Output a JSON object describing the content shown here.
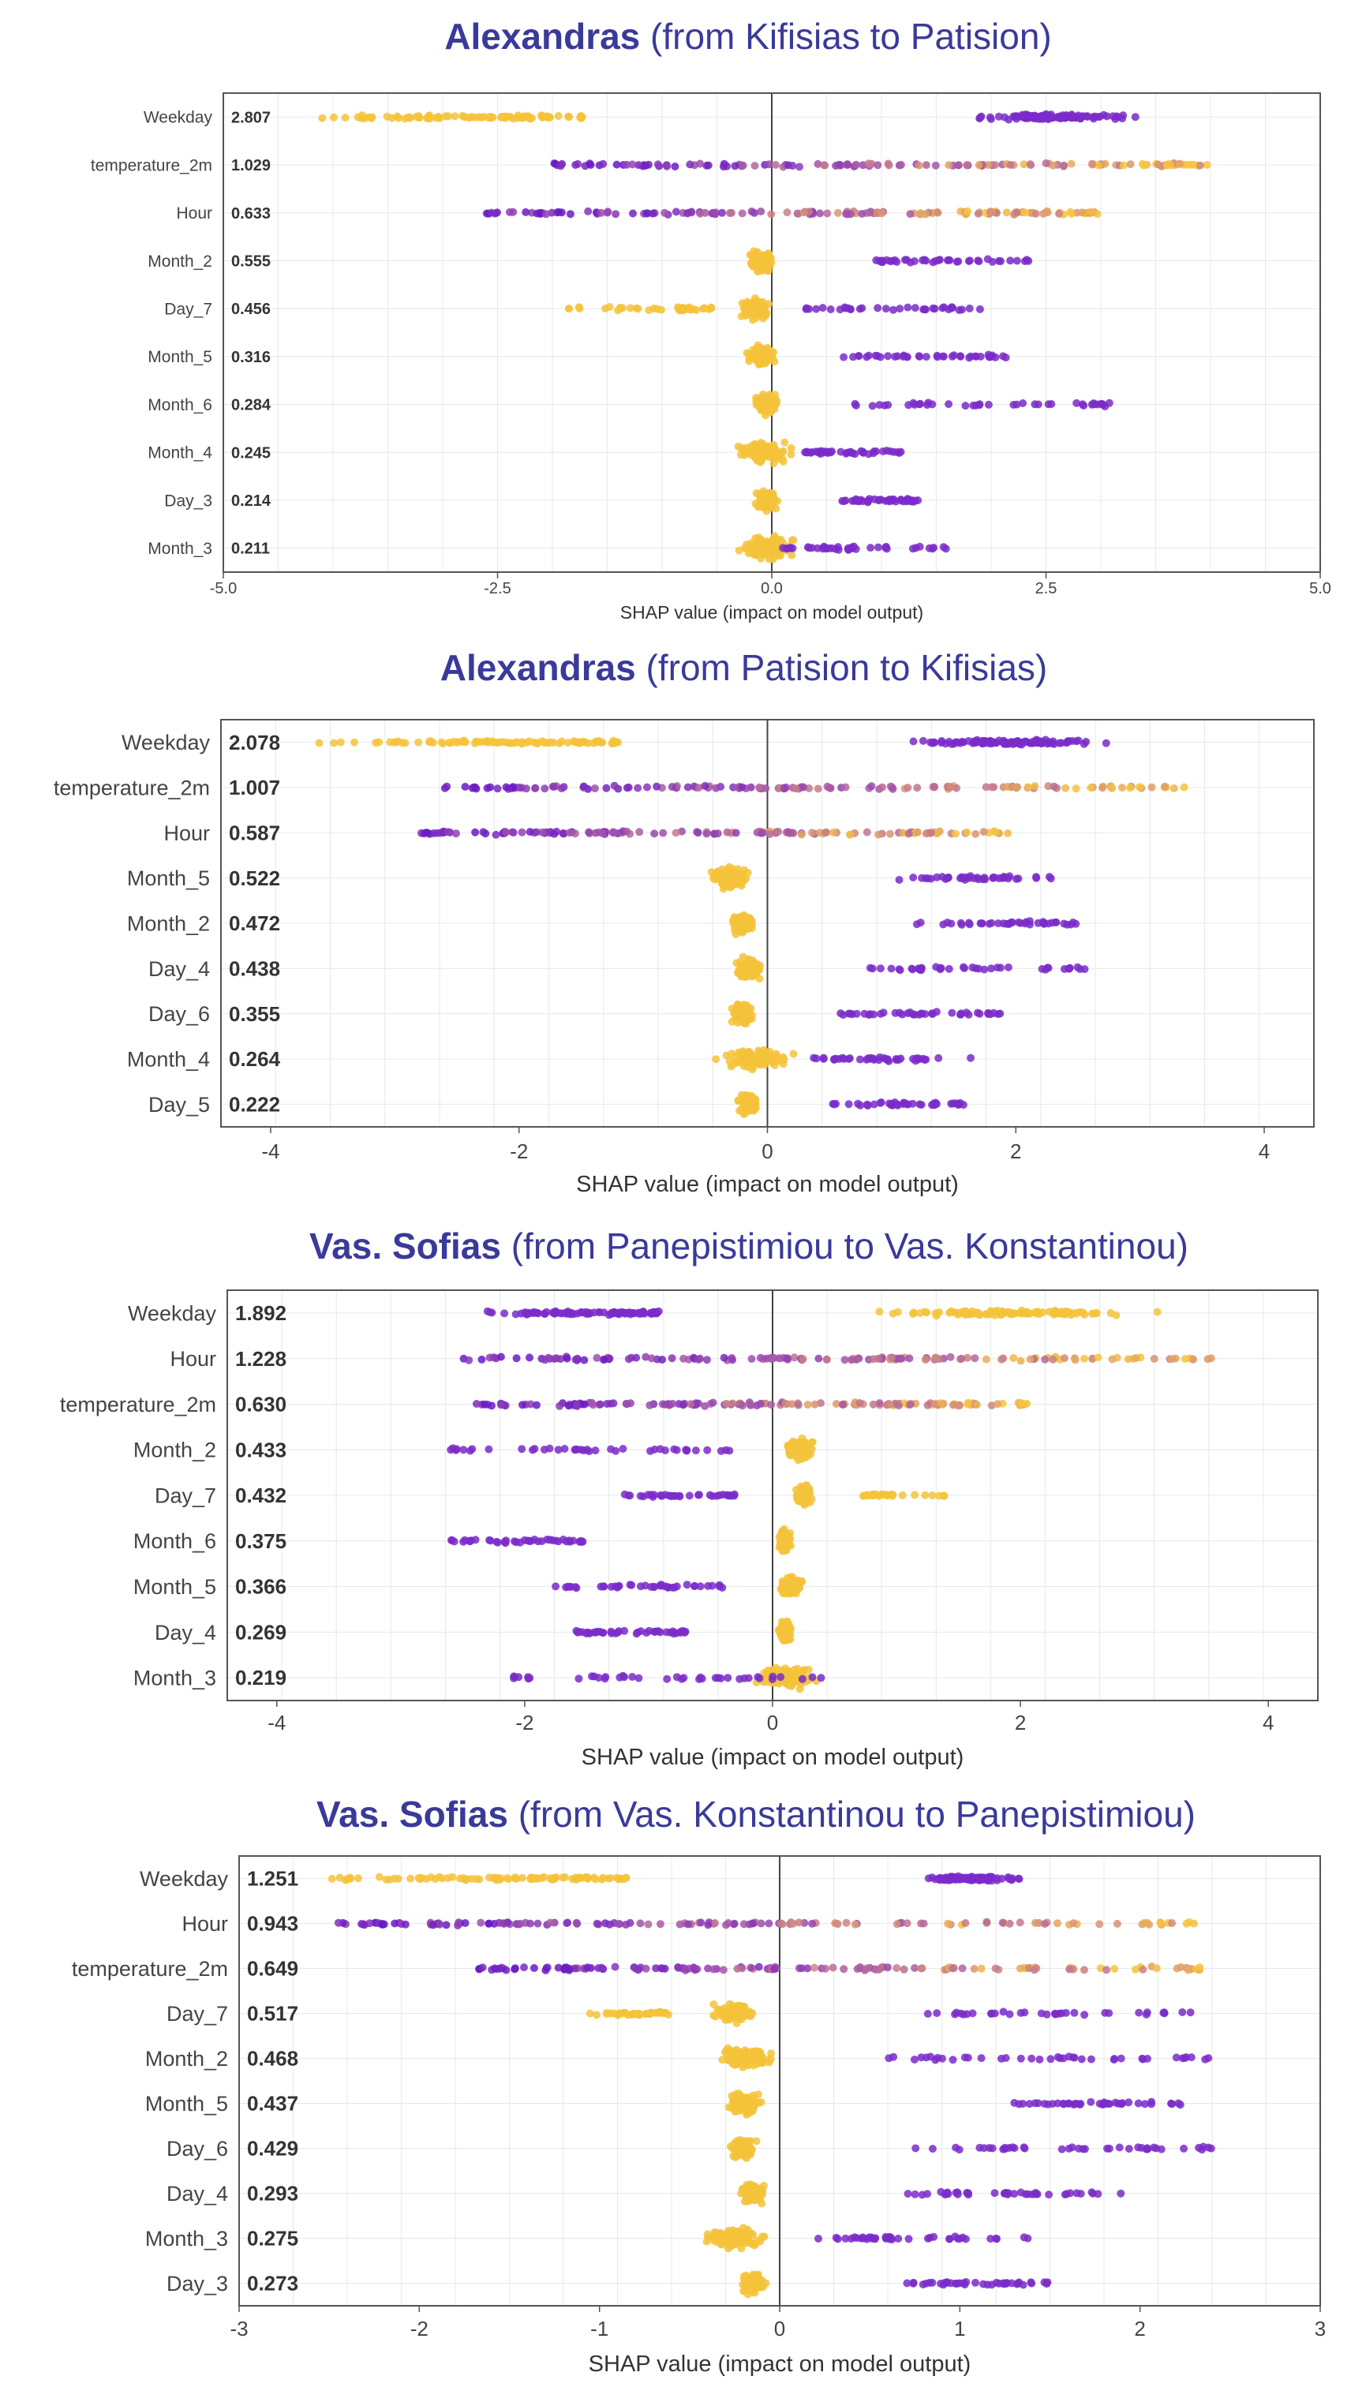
{
  "chart_data": [
    {
      "type": "scatter",
      "title_route": "Alexandras",
      "title_rest": "(from Kifisias to Patision)",
      "xlabel": "SHAP value (impact on model output)",
      "xlim": [
        -5,
        5
      ],
      "xticks": [
        -5.0,
        -2.5,
        0.0,
        2.5,
        5.0
      ],
      "xtick_labels": [
        "-5.0",
        "-2.5",
        "0.0",
        "2.5",
        "5.0"
      ],
      "grid": true,
      "features": [
        {
          "name": "Weekday",
          "importance": "2.807",
          "kind": "bimodal",
          "neg": [
            -4.4,
            -1.7
          ],
          "pos": [
            1.6,
            3.5
          ],
          "neg_color": "#f5c33b",
          "pos_color": "#7a2bc9"
        },
        {
          "name": "temperature_2m",
          "importance": "1.029",
          "kind": "gradient",
          "range": [
            -2.0,
            4.0
          ]
        },
        {
          "name": "Hour",
          "importance": "0.633",
          "kind": "gradient",
          "range": [
            -2.6,
            3.0
          ]
        },
        {
          "name": "Month_2",
          "importance": "0.555",
          "kind": "cluster_plus",
          "center": -0.1,
          "spread": 0.15,
          "tail": [
            0.9,
            2.4
          ]
        },
        {
          "name": "Day_7",
          "importance": "0.456",
          "kind": "cluster_neg_tail_pos",
          "center": -0.15,
          "neg": [
            -2.0,
            -0.5
          ],
          "tail": [
            0.3,
            1.9
          ]
        },
        {
          "name": "Month_5",
          "importance": "0.316",
          "kind": "cluster_plus",
          "center": -0.1,
          "spread": 0.15,
          "tail": [
            0.6,
            2.2
          ]
        },
        {
          "name": "Month_6",
          "importance": "0.284",
          "kind": "cluster_plus",
          "center": -0.05,
          "spread": 0.12,
          "tail": [
            0.7,
            3.1
          ]
        },
        {
          "name": "Month_4",
          "importance": "0.245",
          "kind": "cluster_plus",
          "center": -0.05,
          "spread": 0.3,
          "tail": [
            0.3,
            1.2
          ]
        },
        {
          "name": "Day_3",
          "importance": "0.214",
          "kind": "cluster_plus",
          "center": -0.05,
          "spread": 0.12,
          "tail": [
            0.6,
            1.4
          ]
        },
        {
          "name": "Month_3",
          "importance": "0.211",
          "kind": "cluster_plus",
          "center": -0.05,
          "spread": 0.3,
          "tail": [
            0.1,
            1.6
          ]
        }
      ]
    },
    {
      "type": "scatter",
      "title_route": "Alexandras",
      "title_rest": "(from Patision to Kifisias)",
      "xlabel": "SHAP value (impact on model output)",
      "xlim": [
        -4.4,
        4.4
      ],
      "xticks": [
        -4,
        -2,
        0,
        2,
        4
      ],
      "xtick_labels": [
        "-4",
        "-2",
        "0",
        "2",
        "4"
      ],
      "grid": true,
      "features": [
        {
          "name": "Weekday",
          "importance": "2.078",
          "kind": "bimodal",
          "neg": [
            -3.7,
            -1.2
          ],
          "pos": [
            0.9,
            3.0
          ],
          "neg_color": "#f5c33b",
          "pos_color": "#7a2bc9"
        },
        {
          "name": "temperature_2m",
          "importance": "1.007",
          "kind": "gradient",
          "range": [
            -2.6,
            3.4
          ]
        },
        {
          "name": "Hour",
          "importance": "0.587",
          "kind": "gradient",
          "range": [
            -2.8,
            2.0
          ]
        },
        {
          "name": "Month_5",
          "importance": "0.522",
          "kind": "cluster_plus",
          "center": -0.3,
          "spread": 0.2,
          "tail": [
            1.0,
            2.3
          ]
        },
        {
          "name": "Month_2",
          "importance": "0.472",
          "kind": "cluster_plus",
          "center": -0.2,
          "spread": 0.1,
          "tail": [
            1.2,
            2.5
          ]
        },
        {
          "name": "Day_4",
          "importance": "0.438",
          "kind": "cluster_plus",
          "center": -0.15,
          "spread": 0.12,
          "tail": [
            0.8,
            2.6
          ]
        },
        {
          "name": "Day_6",
          "importance": "0.355",
          "kind": "cluster_plus",
          "center": -0.2,
          "spread": 0.1,
          "tail": [
            0.5,
            1.9
          ]
        },
        {
          "name": "Month_4",
          "importance": "0.264",
          "kind": "cluster_plus",
          "center": -0.1,
          "spread": 0.35,
          "tail": [
            0.3,
            1.7
          ]
        },
        {
          "name": "Day_5",
          "importance": "0.222",
          "kind": "cluster_plus",
          "center": -0.15,
          "spread": 0.1,
          "tail": [
            0.5,
            1.6
          ]
        }
      ]
    },
    {
      "type": "scatter",
      "title_route": "Vas. Sofias",
      "title_rest": "(from Panepistimiou to Vas. Konstantinou)",
      "xlabel": "SHAP value (impact on model output)",
      "xlim": [
        -4.4,
        4.4
      ],
      "xticks": [
        -4,
        -2,
        0,
        2,
        4
      ],
      "xtick_labels": [
        "-4",
        "-2",
        "0",
        "2",
        "4"
      ],
      "grid": true,
      "features": [
        {
          "name": "Weekday",
          "importance": "1.892",
          "kind": "bimodal",
          "neg": [
            -2.4,
            -0.9
          ],
          "pos": [
            0.5,
            3.6
          ],
          "neg_color": "#7a2bc9",
          "pos_color": "#f5c33b"
        },
        {
          "name": "Hour",
          "importance": "1.228",
          "kind": "gradient",
          "range": [
            -2.6,
            3.6
          ]
        },
        {
          "name": "temperature_2m",
          "importance": "0.630",
          "kind": "gradient",
          "range": [
            -2.4,
            2.1
          ]
        },
        {
          "name": "Month_2",
          "importance": "0.433",
          "kind": "cluster_minus",
          "center": 0.2,
          "spread": 0.15,
          "tail": [
            -2.6,
            -0.3
          ]
        },
        {
          "name": "Day_7",
          "importance": "0.432",
          "kind": "cluster_minus_yellow_pos",
          "center": 0.25,
          "spread": 0.08,
          "tail": [
            -1.2,
            -0.3
          ],
          "pos": [
            0.7,
            1.4
          ]
        },
        {
          "name": "Month_6",
          "importance": "0.375",
          "kind": "cluster_minus",
          "center": 0.1,
          "spread": 0.06,
          "tail": [
            -2.6,
            -1.5
          ]
        },
        {
          "name": "Month_5",
          "importance": "0.366",
          "kind": "cluster_minus",
          "center": 0.15,
          "spread": 0.12,
          "tail": [
            -1.8,
            -0.4
          ]
        },
        {
          "name": "Day_4",
          "importance": "0.269",
          "kind": "cluster_minus",
          "center": 0.1,
          "spread": 0.06,
          "tail": [
            -1.6,
            -0.7
          ]
        },
        {
          "name": "Month_3",
          "importance": "0.219",
          "kind": "cluster_minus",
          "center": 0.1,
          "spread": 0.3,
          "tail": [
            -2.3,
            0.4
          ]
        }
      ]
    },
    {
      "type": "scatter",
      "title_route": "Vas. Sofias",
      "title_rest": "(from Vas. Konstantinou to Panepistimiou)",
      "xlabel": "SHAP value (impact on model output)",
      "xlim": [
        -3,
        3
      ],
      "xticks": [
        -3,
        -2,
        -1,
        0,
        1,
        2,
        3
      ],
      "xtick_labels": [
        "-3",
        "-2",
        "-1",
        "0",
        "1",
        "2",
        "3"
      ],
      "grid": true,
      "features": [
        {
          "name": "Weekday",
          "importance": "1.251",
          "kind": "bimodal",
          "neg": [
            -2.55,
            -0.85
          ],
          "pos": [
            0.75,
            1.4
          ],
          "neg_color": "#f5c33b",
          "pos_color": "#7a2bc9"
        },
        {
          "name": "Hour",
          "importance": "0.943",
          "kind": "gradient",
          "range": [
            -2.5,
            2.3
          ]
        },
        {
          "name": "temperature_2m",
          "importance": "0.649",
          "kind": "gradient",
          "range": [
            -1.7,
            2.4
          ]
        },
        {
          "name": "Day_7",
          "importance": "0.517",
          "kind": "cluster_neg_tail_pos",
          "center": -0.25,
          "neg": [
            -1.1,
            -0.6
          ],
          "tail": [
            0.8,
            2.3
          ]
        },
        {
          "name": "Month_2",
          "importance": "0.468",
          "kind": "cluster_plus",
          "center": -0.2,
          "spread": 0.18,
          "tail": [
            0.6,
            2.4
          ]
        },
        {
          "name": "Month_5",
          "importance": "0.437",
          "kind": "cluster_plus",
          "center": -0.2,
          "spread": 0.12,
          "tail": [
            1.3,
            2.3
          ]
        },
        {
          "name": "Day_6",
          "importance": "0.429",
          "kind": "cluster_plus",
          "center": -0.2,
          "spread": 0.08,
          "tail": [
            0.6,
            2.4
          ]
        },
        {
          "name": "Day_4",
          "importance": "0.293",
          "kind": "cluster_plus",
          "center": -0.15,
          "spread": 0.08,
          "tail": [
            0.7,
            1.9
          ]
        },
        {
          "name": "Month_3",
          "importance": "0.275",
          "kind": "cluster_plus",
          "center": -0.25,
          "spread": 0.2,
          "tail": [
            0.2,
            1.4
          ]
        },
        {
          "name": "Day_3",
          "importance": "0.273",
          "kind": "cluster_plus",
          "center": -0.15,
          "spread": 0.08,
          "tail": [
            0.7,
            1.5
          ]
        }
      ]
    }
  ]
}
